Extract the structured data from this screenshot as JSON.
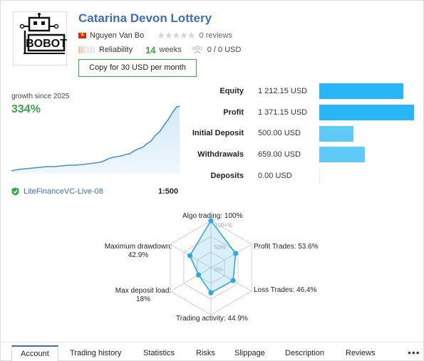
{
  "header": {
    "title": "Catarina Devon Lottery",
    "logo_text": "BOBOT",
    "author": "Nguyen Van Bo",
    "reviews": "0 reviews",
    "rating_stars": 0,
    "reliability_label": "Reliability",
    "weeks_value": "14",
    "weeks_label": "weeks",
    "subscribers": "0 / 0 USD",
    "copy_button": "Copy for 30 USD per month"
  },
  "growth": {
    "label": "growth since 2025",
    "value": "334%"
  },
  "account": {
    "broker": "LiteFinanceVC-Live-08",
    "leverage": "1:500"
  },
  "stats": [
    {
      "label": "Equity",
      "value": "1 212.15 USD",
      "amount": 1212.15
    },
    {
      "label": "Profit",
      "value": "1 371.15 USD",
      "amount": 1371.15
    },
    {
      "label": "Initial Deposit",
      "value": "500.00 USD",
      "amount": 500.0
    },
    {
      "label": "Withdrawals",
      "value": "659.00 USD",
      "amount": 659.0
    },
    {
      "label": "Deposits",
      "value": "0.00 USD",
      "amount": 0.0
    }
  ],
  "radar": {
    "scale_labels": [
      "100+%",
      "50%",
      "0%"
    ],
    "axes": [
      {
        "label": "Algo trading: 100%",
        "value": 1.0
      },
      {
        "label": "Profit Trades: 53.6%",
        "value": 0.536
      },
      {
        "label": "Loss Trades: 46.4%",
        "value": 0.464
      },
      {
        "label": "Trading activity: 44.9%",
        "value": 0.449
      },
      {
        "label_line1": "Max deposit load:",
        "label_line2": "18%",
        "value": 0.18
      },
      {
        "label_line1": "Maximum drawdown:",
        "label_line2": "42.9%",
        "value": 0.429
      }
    ]
  },
  "tabs": [
    {
      "label": "Account",
      "active": true
    },
    {
      "label": "Trading history"
    },
    {
      "label": "Statistics"
    },
    {
      "label": "Risks"
    },
    {
      "label": "Slippage"
    },
    {
      "label": "Description"
    },
    {
      "label": "Reviews"
    }
  ],
  "more": "•••",
  "colors": {
    "accent": "#3f6fb0",
    "green": "#3aa64a",
    "bar_main": "#29b6f6",
    "bar_light": "#5fcaf5",
    "radar": "#2fa8dd"
  }
}
